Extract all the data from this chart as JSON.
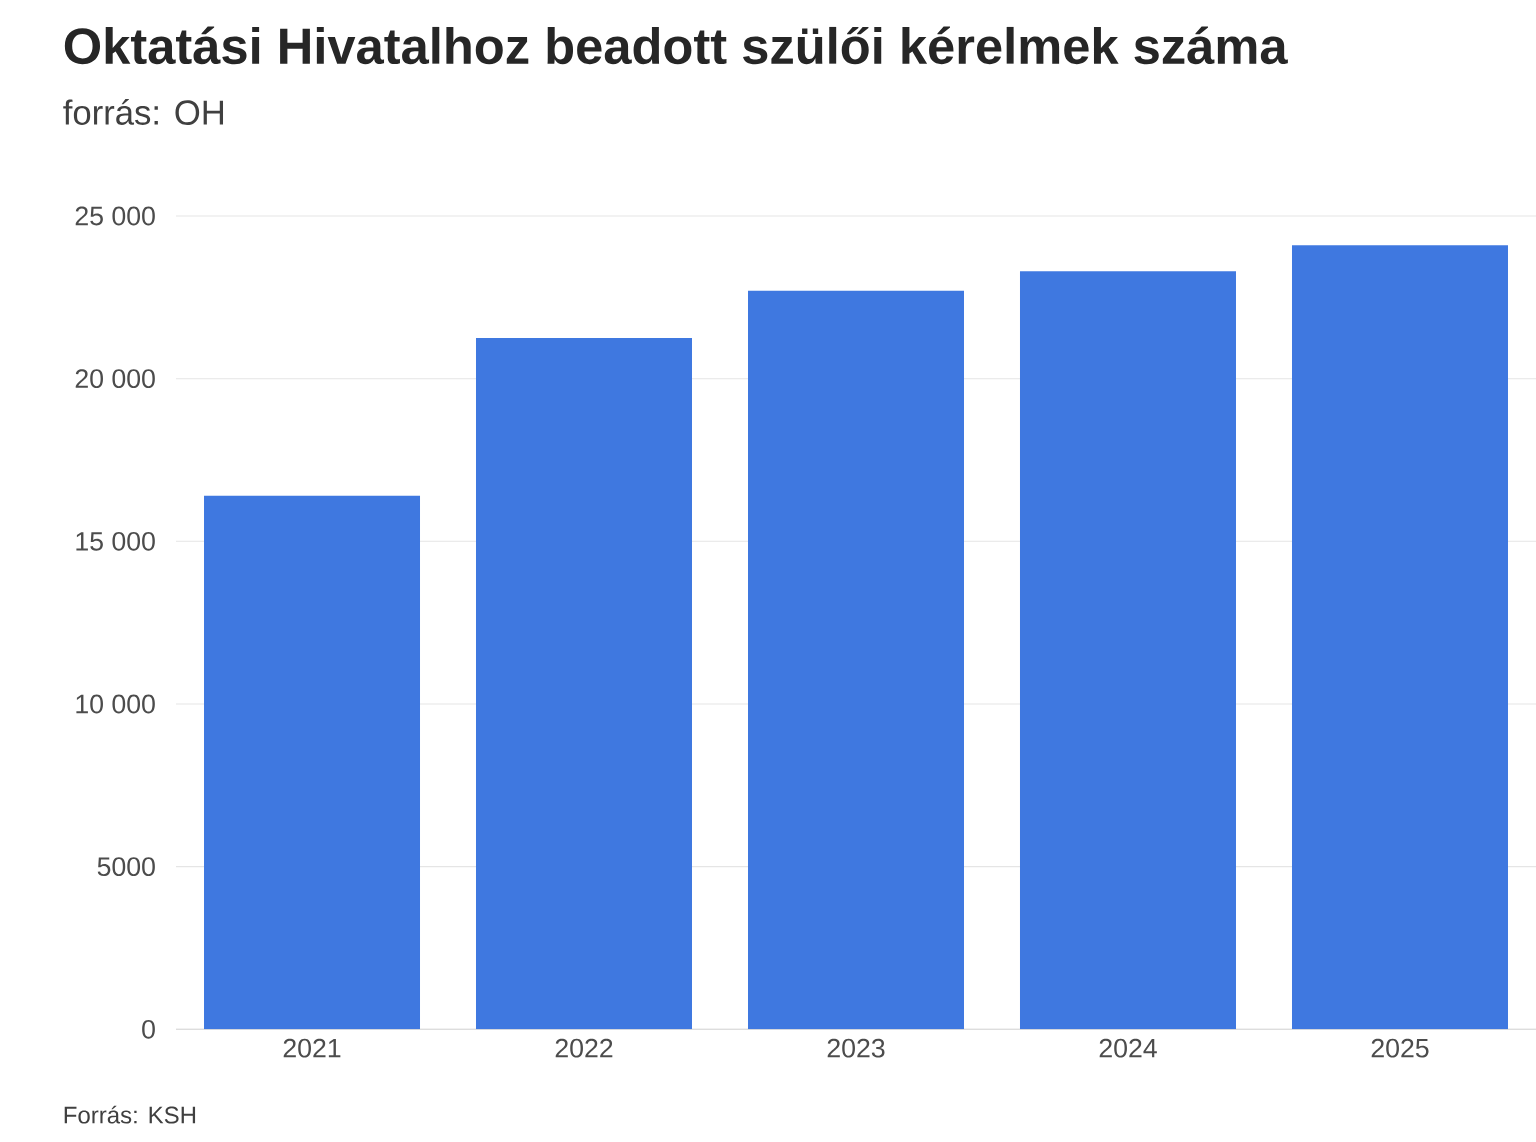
{
  "chart_data": {
    "type": "bar",
    "title": "Oktatási Hivatalhoz beadott szülői kérelmek száma",
    "subtitle": "forrás: OH",
    "annotations": [
      "Forrás: KSH"
    ],
    "categories": [
      "2021",
      "2022",
      "2023",
      "2024",
      "2025"
    ],
    "values": [
      16400,
      21250,
      22700,
      23300,
      24100
    ],
    "color": "#3f78e0",
    "ylim": [
      0,
      25000
    ],
    "yticks": [
      0,
      5000,
      {
        "value": 10000,
        "label": "10 000"
      },
      {
        "value": 15000,
        "label": "15 000"
      },
      {
        "value": 20000,
        "label": "20 000"
      },
      {
        "value": 25000,
        "label": "25 000"
      }
    ],
    "grid": "y"
  }
}
